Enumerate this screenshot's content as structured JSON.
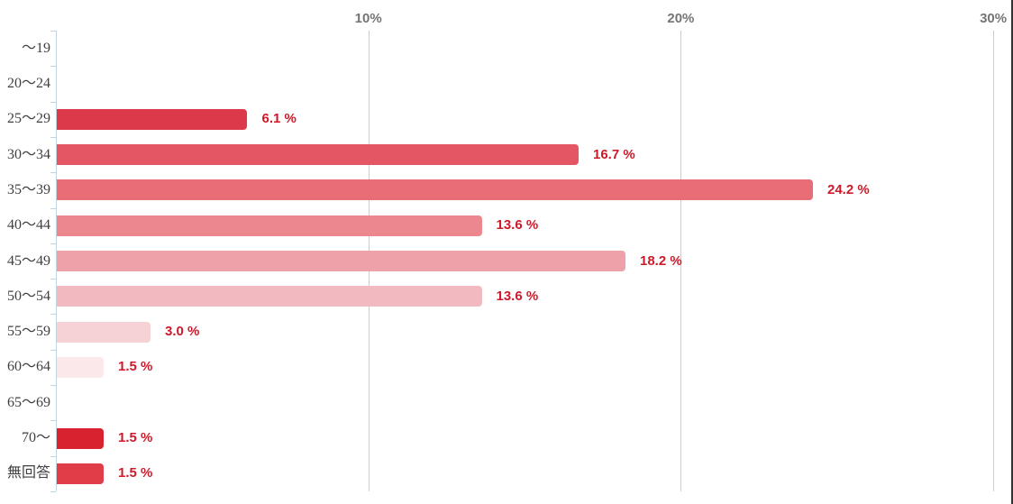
{
  "chart_data": {
    "type": "bar",
    "orientation": "horizontal",
    "title": "",
    "xlabel": "",
    "ylabel": "",
    "categories": [
      "～19",
      "20～24",
      "25～29",
      "30～34",
      "35～39",
      "40～44",
      "45～49",
      "50～54",
      "55～59",
      "60～64",
      "65～69",
      "70～",
      "無回答"
    ],
    "values": [
      0,
      0,
      6.1,
      16.7,
      24.2,
      13.6,
      18.2,
      13.6,
      3.0,
      1.5,
      0,
      1.5,
      1.5
    ],
    "annotations": [
      "",
      "",
      "6.1 %",
      "16.7 %",
      "24.2 %",
      "13.6 %",
      "18.2 %",
      "13.6 %",
      "3.0 %",
      "1.5 %",
      "",
      "1.5 %",
      "1.5 %"
    ],
    "bar_colors": [
      "",
      "",
      "#dc394b",
      "#e45663",
      "#e96d77",
      "#ec8790",
      "#efa1a9",
      "#f2bac0",
      "#f6d1d5",
      "#fbe8ea",
      "",
      "#d9222f",
      "#e03d49"
    ],
    "x_axis": {
      "position": "top",
      "ticks": [
        "10%",
        "20%",
        "30%"
      ],
      "tick_values": [
        10,
        20,
        30
      ],
      "min": 0,
      "max": 30.6
    },
    "grid": true,
    "legend": "none",
    "colors": {
      "annotation_text": "#cc1a2b",
      "gridline": "#cccccc",
      "axis_line": "#c3d4e1",
      "tick_label_text": "#757575",
      "category_label_text": "#404040",
      "background": "#ffffff",
      "right_border": "#333333"
    }
  }
}
